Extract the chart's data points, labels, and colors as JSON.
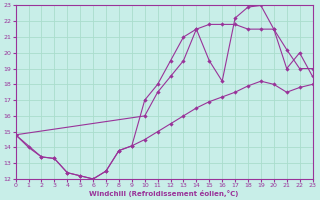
{
  "xlabel": "Windchill (Refroidissement éolien,°C)",
  "bg_color": "#c8eee8",
  "line_color": "#993399",
  "grid_color": "#aaddcc",
  "xlim": [
    0,
    23
  ],
  "ylim": [
    12,
    23
  ],
  "xticks": [
    0,
    1,
    2,
    3,
    4,
    5,
    6,
    7,
    8,
    9,
    10,
    11,
    12,
    13,
    14,
    15,
    16,
    17,
    18,
    19,
    20,
    21,
    22,
    23
  ],
  "yticks": [
    12,
    13,
    14,
    15,
    16,
    17,
    18,
    19,
    20,
    21,
    22,
    23
  ],
  "line1_x": [
    0,
    1,
    2,
    3,
    4,
    5,
    6,
    7,
    8,
    9,
    10,
    11,
    12,
    13,
    14,
    15,
    16,
    17,
    18,
    19,
    20,
    21,
    22,
    23
  ],
  "line1_y": [
    14.8,
    14.0,
    13.4,
    13.3,
    12.4,
    12.2,
    12.0,
    12.5,
    13.8,
    14.1,
    14.5,
    15.0,
    15.5,
    16.0,
    16.5,
    16.9,
    17.2,
    17.5,
    17.9,
    18.2,
    18.0,
    17.5,
    17.8,
    18.0
  ],
  "line2_x": [
    0,
    2,
    3,
    4,
    5,
    6,
    7,
    8,
    9,
    10,
    11,
    12,
    13,
    14,
    15,
    16,
    17,
    18,
    19,
    20,
    21,
    22,
    23
  ],
  "line2_y": [
    14.8,
    13.4,
    13.3,
    12.4,
    12.2,
    12.0,
    12.5,
    13.8,
    14.1,
    17.0,
    18.0,
    19.5,
    21.0,
    21.5,
    19.5,
    18.2,
    22.2,
    22.9,
    23.0,
    21.5,
    20.2,
    19.0,
    19.0
  ],
  "line3_x": [
    0,
    10,
    11,
    12,
    13,
    14,
    15,
    16,
    17,
    18,
    19,
    20,
    21,
    22,
    23
  ],
  "line3_y": [
    14.8,
    16.0,
    17.5,
    18.5,
    19.5,
    21.5,
    21.8,
    21.8,
    21.8,
    21.5,
    21.5,
    21.5,
    19.0,
    20.0,
    18.5
  ]
}
